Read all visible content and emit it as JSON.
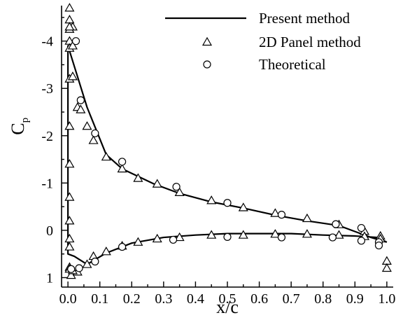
{
  "chart_data": {
    "type": "line",
    "xlabel": "x/c",
    "ylabel_main": "C",
    "ylabel_sub": "p",
    "xlim": [
      0,
      1
    ],
    "ylim": [
      1.2,
      -4.7
    ],
    "y_inverted": true,
    "x_ticks": [
      "0.0",
      "0.1",
      "0.2",
      "0.3",
      "0.4",
      "0.5",
      "0.6",
      "0.7",
      "0.8",
      "0.9",
      "1.0"
    ],
    "x_tick_values": [
      0,
      0.1,
      0.2,
      0.3,
      0.4,
      0.5,
      0.6,
      0.7,
      0.8,
      0.9,
      1.0
    ],
    "y_ticks": [
      "-4",
      "-3",
      "-2",
      "-1",
      "0",
      "1"
    ],
    "y_tick_values": [
      -4,
      -3,
      -2,
      -1,
      0,
      1
    ],
    "legend_position": "top-right",
    "series": [
      {
        "name": "Present method",
        "style": "line",
        "x": [
          1.0,
          0.95,
          0.85,
          0.75,
          0.65,
          0.55,
          0.45,
          0.35,
          0.27,
          0.17,
          0.12,
          0.06,
          0.0,
          0.0,
          0.0,
          0.02,
          0.06,
          0.12,
          0.2,
          0.3,
          0.4,
          0.5,
          0.6,
          0.7,
          0.8,
          0.9,
          0.97,
          1.0
        ],
        "y": [
          0.25,
          0.15,
          -0.1,
          -0.2,
          -0.32,
          -0.47,
          -0.6,
          -0.78,
          -0.98,
          -1.3,
          -1.6,
          -2.6,
          -3.9,
          -2.0,
          0.5,
          0.55,
          0.72,
          0.48,
          0.27,
          0.15,
          0.1,
          0.07,
          0.07,
          0.07,
          0.1,
          0.12,
          0.15,
          0.25
        ]
      },
      {
        "name": "2D Panel method",
        "style": "triangle",
        "x": [
          0.005,
          0.005,
          0.005,
          0.005,
          0.005,
          0.005,
          0.005,
          0.005,
          0.005,
          0.005,
          0.005,
          0.005,
          0.005,
          0.015,
          0.015,
          0.03,
          0.04,
          0.06,
          0.08,
          0.12,
          0.17,
          0.22,
          0.28,
          0.35,
          0.45,
          0.55,
          0.65,
          0.75,
          0.85,
          0.93,
          0.98,
          0.01,
          0.03,
          0.06,
          0.08,
          0.12,
          0.17,
          0.22,
          0.28,
          0.35,
          0.45,
          0.55,
          0.65,
          0.75,
          0.85,
          0.93,
          0.98,
          1.0,
          1.0,
          0.005,
          0.005,
          0.015,
          0.015
        ],
        "y": [
          -4.7,
          -4.45,
          -4.25,
          -4.0,
          -3.85,
          -3.2,
          -2.2,
          -1.4,
          -0.7,
          -0.2,
          0.18,
          0.35,
          0.78,
          -4.3,
          -3.25,
          -2.6,
          -2.55,
          -2.2,
          -1.9,
          -1.55,
          -1.3,
          -1.1,
          -0.98,
          -0.8,
          -0.63,
          -0.48,
          -0.36,
          -0.25,
          -0.12,
          0.02,
          0.12,
          0.95,
          0.88,
          0.72,
          0.55,
          0.45,
          0.33,
          0.25,
          0.18,
          0.15,
          0.1,
          0.1,
          0.08,
          0.08,
          0.1,
          0.13,
          0.18,
          0.65,
          0.8,
          0.82,
          -4.3,
          0.85,
          -3.9
        ]
      },
      {
        "name": "Theoretical",
        "style": "circle",
        "x": [
          0.025,
          0.04,
          0.085,
          0.17,
          0.34,
          0.5,
          0.67,
          0.84,
          0.92,
          0.975,
          0.01,
          0.035,
          0.085,
          0.17,
          0.33,
          0.5,
          0.67,
          0.83,
          0.92,
          0.975
        ],
        "y": [
          -4.0,
          -2.75,
          -2.05,
          -1.45,
          -0.92,
          -0.58,
          -0.33,
          -0.13,
          -0.05,
          0.25,
          0.82,
          0.8,
          0.66,
          0.35,
          0.2,
          0.14,
          0.15,
          0.15,
          0.22,
          0.32
        ]
      }
    ]
  }
}
